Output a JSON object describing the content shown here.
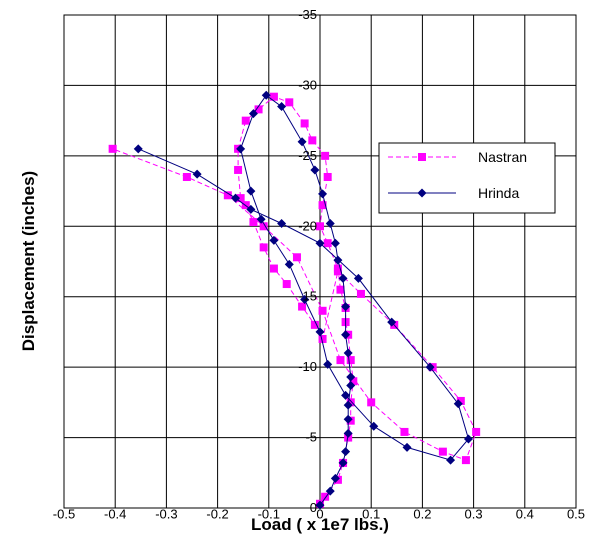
{
  "chart_data": {
    "type": "scatter",
    "xlabel": "Load ( x 1e7 lbs.)",
    "ylabel": "Displacement  (inches)",
    "xlim": [
      -0.5,
      0.5
    ],
    "ylim": [
      0,
      35
    ],
    "x_ticks": [
      -0.5,
      -0.4,
      -0.3,
      -0.2,
      -0.1,
      0,
      0.1,
      0.2,
      0.3,
      0.4,
      0.5
    ],
    "x_tick_labels": [
      "-0.5",
      "-0.4",
      "-0.3",
      "-0.2",
      "-0.1",
      "0",
      "0.1",
      "0.2",
      "0.3",
      "0.4",
      "0.5"
    ],
    "y_ticks": [
      0,
      5,
      10,
      15,
      20,
      25,
      30,
      35
    ],
    "y_tick_labels": [
      "0",
      "-5",
      "-10",
      "-15",
      "-20",
      "-25",
      "-30",
      "-35"
    ],
    "grid": true,
    "legend_position": "right-upper",
    "series": [
      {
        "name": "Nastran",
        "color": "#ff00ff",
        "line_style": "dashed",
        "marker": "square",
        "points": [
          [
            0.0,
            0.3
          ],
          [
            0.01,
            0.8
          ],
          [
            0.035,
            2.0
          ],
          [
            0.045,
            3.2
          ],
          [
            0.055,
            5.0
          ],
          [
            0.06,
            6.2
          ],
          [
            0.06,
            7.5
          ],
          [
            0.065,
            9.0
          ],
          [
            0.06,
            10.5
          ],
          [
            0.055,
            12.3
          ],
          [
            0.05,
            13.2
          ],
          [
            0.05,
            14.2
          ],
          [
            0.04,
            15.5
          ],
          [
            0.035,
            17.0
          ],
          [
            0.015,
            18.8
          ],
          [
            0.0,
            20.0
          ],
          [
            0.005,
            21.5
          ],
          [
            0.015,
            23.5
          ],
          [
            0.01,
            25.0
          ],
          [
            -0.015,
            26.1
          ],
          [
            -0.03,
            27.3
          ],
          [
            -0.06,
            28.8
          ],
          [
            -0.09,
            29.2
          ],
          [
            -0.12,
            28.3
          ],
          [
            -0.145,
            27.5
          ],
          [
            -0.16,
            25.5
          ],
          [
            -0.16,
            24.0
          ],
          [
            -0.155,
            22.0
          ],
          [
            -0.145,
            21.5
          ],
          [
            -0.13,
            20.3
          ],
          [
            -0.11,
            18.5
          ],
          [
            -0.09,
            17.0
          ],
          [
            -0.065,
            15.9
          ],
          [
            -0.035,
            14.3
          ],
          [
            -0.01,
            13.0
          ],
          [
            0.005,
            12.0
          ],
          [
            0.035,
            16.8
          ],
          [
            0.08,
            15.2
          ],
          [
            0.145,
            13.0
          ],
          [
            0.22,
            10.0
          ],
          [
            0.275,
            7.6
          ],
          [
            0.305,
            5.4
          ],
          [
            0.285,
            3.4
          ],
          [
            0.24,
            4.0
          ],
          [
            0.165,
            5.4
          ],
          [
            0.1,
            7.5
          ],
          [
            0.04,
            10.5
          ],
          [
            0.005,
            14.0
          ],
          [
            -0.045,
            17.8
          ],
          [
            -0.11,
            20.0
          ],
          [
            -0.18,
            22.2
          ],
          [
            -0.26,
            23.5
          ],
          [
            -0.405,
            25.5
          ]
        ]
      },
      {
        "name": "Hrinda",
        "color": "#000080",
        "line_style": "solid",
        "marker": "diamond",
        "points": [
          [
            -0.355,
            25.5
          ],
          [
            -0.24,
            23.7
          ],
          [
            -0.165,
            22.0
          ],
          [
            -0.135,
            21.2
          ],
          [
            -0.075,
            20.2
          ],
          [
            0.0,
            18.8
          ],
          [
            0.075,
            16.3
          ],
          [
            0.14,
            13.2
          ],
          [
            0.215,
            10.0
          ],
          [
            0.27,
            7.4
          ],
          [
            0.29,
            4.9
          ],
          [
            0.255,
            3.4
          ],
          [
            0.17,
            4.3
          ],
          [
            0.105,
            5.8
          ],
          [
            0.05,
            8.0
          ],
          [
            0.015,
            10.2
          ],
          [
            0.0,
            12.5
          ],
          [
            -0.03,
            14.8
          ],
          [
            -0.06,
            17.3
          ],
          [
            -0.09,
            19.0
          ],
          [
            -0.115,
            20.5
          ],
          [
            -0.135,
            22.5
          ],
          [
            -0.155,
            25.5
          ],
          [
            -0.13,
            28.0
          ],
          [
            -0.105,
            29.3
          ],
          [
            -0.075,
            28.5
          ],
          [
            -0.035,
            26.0
          ],
          [
            -0.01,
            24.0
          ],
          [
            0.005,
            22.3
          ],
          [
            0.02,
            20.2
          ],
          [
            0.03,
            18.8
          ],
          [
            0.035,
            17.6
          ],
          [
            0.045,
            16.3
          ],
          [
            0.05,
            14.3
          ],
          [
            0.05,
            12.3
          ],
          [
            0.055,
            11.0
          ],
          [
            0.06,
            9.3
          ],
          [
            0.06,
            8.7
          ],
          [
            0.055,
            7.3
          ],
          [
            0.055,
            6.3
          ],
          [
            0.055,
            5.3
          ],
          [
            0.05,
            4.0
          ],
          [
            0.045,
            3.2
          ],
          [
            0.03,
            2.1
          ],
          [
            0.02,
            1.2
          ],
          [
            0.0,
            0.2
          ]
        ]
      }
    ]
  }
}
